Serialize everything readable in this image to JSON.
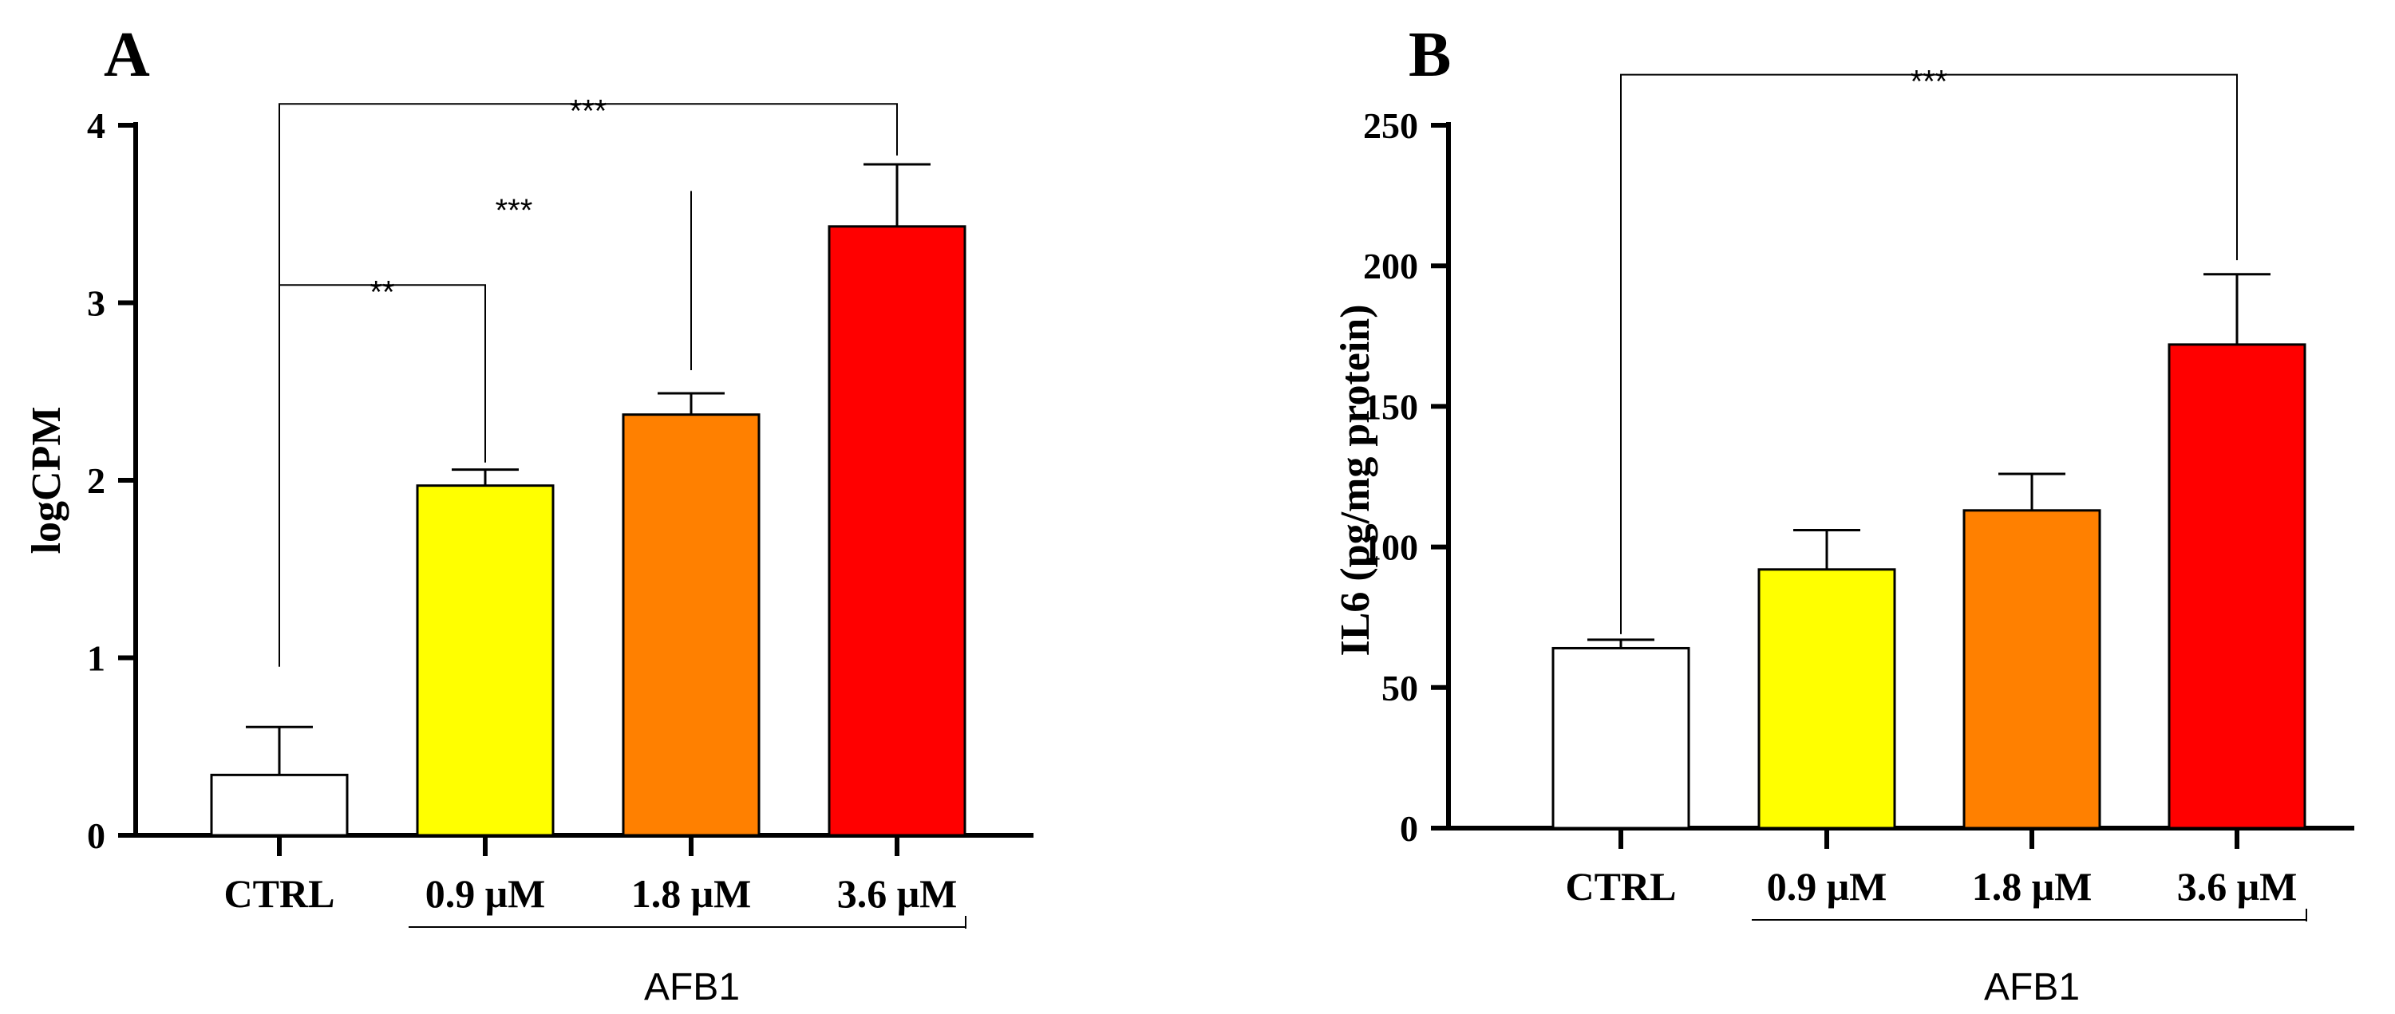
{
  "chart_data": [
    {
      "panel": "A",
      "type": "bar",
      "ylabel": "logCPM",
      "xlabel": "",
      "ylim": [
        0,
        4
      ],
      "yticks": [
        0,
        1,
        2,
        3,
        4
      ],
      "categories": [
        "CTRL",
        "0.9 μM",
        "1.8 μM",
        "3.6 μM"
      ],
      "values": [
        0.34,
        1.97,
        2.37,
        3.43
      ],
      "errors": [
        0.27,
        0.09,
        0.12,
        0.35
      ],
      "colors": [
        "#ffffff",
        "#ffff00",
        "#ff8000",
        "#ff0000"
      ],
      "group": {
        "label": "AFB1",
        "from": 1,
        "to": 3
      },
      "significance": [
        {
          "from": 0,
          "to": 3,
          "label": "***",
          "y": 4.12,
          "from_top": 0.95,
          "to_top": 3.83
        },
        {
          "from": 0,
          "to": 1,
          "label": "**",
          "y": 3.1,
          "from_top": 0.95,
          "to_top": 2.1
        },
        {
          "at": 1.12,
          "label": "***",
          "y": 3.55,
          "line_to": 2,
          "line_top": 3.63,
          "line_bottom": 2.62
        }
      ]
    },
    {
      "panel": "B",
      "type": "bar",
      "ylabel": "IL6 (pg/mg protein)",
      "xlabel": "",
      "ylim": [
        0,
        250
      ],
      "yticks": [
        0,
        50,
        100,
        150,
        200,
        250
      ],
      "categories": [
        "CTRL",
        "0.9 μM",
        "1.8 μM",
        "3.6 μM"
      ],
      "values": [
        64,
        92,
        113,
        172
      ],
      "errors": [
        3,
        14,
        13,
        25
      ],
      "colors": [
        "#ffffff",
        "#ffff00",
        "#ff8000",
        "#ff0000"
      ],
      "group": {
        "label": "AFB1",
        "from": 1,
        "to": 3
      },
      "significance": [
        {
          "from": 0,
          "to": 3,
          "label": "***",
          "y": 268,
          "from_top": 69,
          "to_top": 202
        }
      ]
    }
  ]
}
